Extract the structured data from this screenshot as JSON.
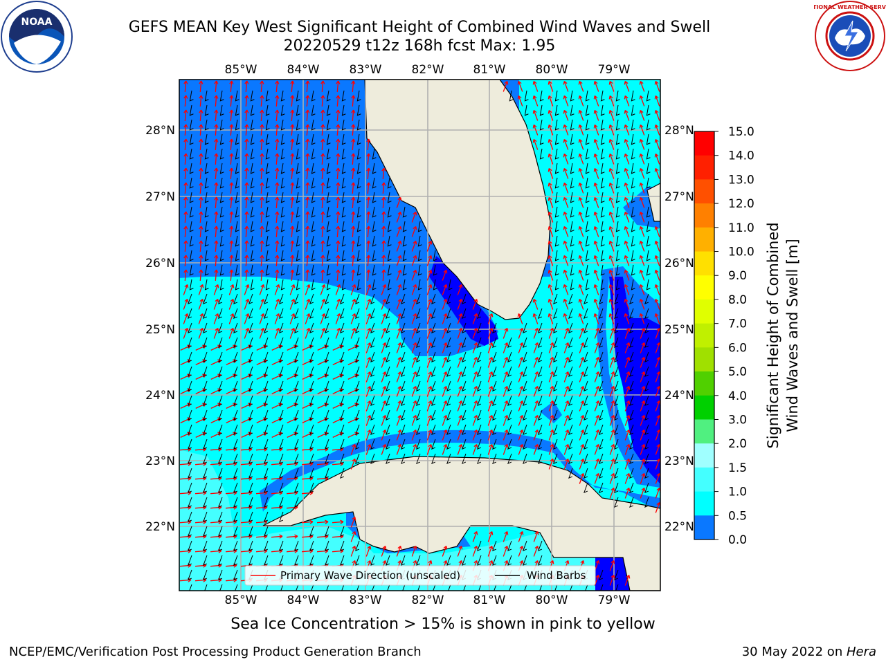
{
  "title": {
    "line1": "GEFS MEAN Key West Significant Height of Combined Wind Waves and Swell",
    "line2": "20220529 t12z 168h fcst   Max: 1.95"
  },
  "logos": {
    "left": {
      "name": "noaa-logo",
      "text": "NOAA"
    },
    "right": {
      "name": "nws-logo",
      "text": "NATIONAL WEATHER SERVICE"
    }
  },
  "map": {
    "lon_labels": [
      "85°W",
      "84°W",
      "83°W",
      "82°W",
      "81°W",
      "80°W",
      "79°W"
    ],
    "lat_labels": [
      "28°N",
      "27°N",
      "26°N",
      "25°N",
      "24°N",
      "23°N",
      "22°N"
    ],
    "legend": {
      "wave": "Primary Wave Direction (unscaled)",
      "wind": "Wind Barbs"
    },
    "colors": {
      "land": "#eeecdc",
      "level_0": "#0000ff",
      "level_1": "#0a78ff",
      "level_2": "#00ffff",
      "level_3": "#44ffff",
      "wave_arrow": "#ff0000",
      "wind_barb": "#000000",
      "grid": "#b0b0b0"
    }
  },
  "colorbar": {
    "label": "Significant Height of Combined Wind Waves and Swell [m]",
    "ticks": [
      "15.0",
      "14.0",
      "13.0",
      "12.0",
      "11.0",
      "10.0",
      "9.0",
      "8.0",
      "7.0",
      "6.0",
      "5.0",
      "4.0",
      "3.0",
      "2.0",
      "1.5",
      "1.0",
      "0.5",
      "0.0"
    ],
    "colors": [
      "#ff0000",
      "#ff2000",
      "#ff5000",
      "#ff8000",
      "#ffb000",
      "#ffe000",
      "#ffff00",
      "#e0ff00",
      "#c0f000",
      "#a0e000",
      "#50d000",
      "#00d000",
      "#50f080",
      "#a0ffff",
      "#44ffff",
      "#00ffff",
      "#0a78ff",
      "#0000ff"
    ]
  },
  "caption": "Sea Ice Concentration > 15% is shown in pink to yellow",
  "footer": {
    "left": "NCEP/EMC/Verification Post Processing Product Generation Branch",
    "right_date": "30 May 2022 on ",
    "right_host": "Hera"
  }
}
